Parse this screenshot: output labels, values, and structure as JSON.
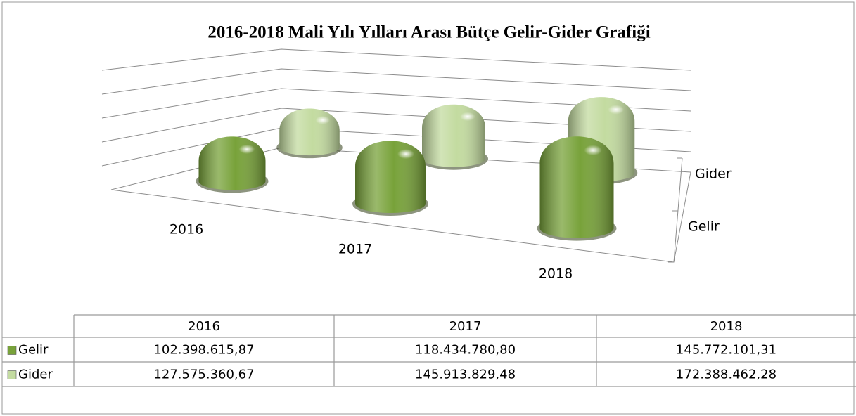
{
  "chart_data": {
    "type": "bar3d",
    "title": "2016-2018 Mali Yılı Yılları Arası Bütçe Gelir-Gider Grafiği",
    "categories": [
      "2016",
      "2017",
      "2018"
    ],
    "series": [
      {
        "name": "Gelir",
        "color": "#78a23a",
        "values": [
          102398615.87,
          118434780.8,
          145772101.31
        ],
        "value_labels": [
          "102.398.615,87",
          "118.434.780,80",
          "145.772.101,31"
        ]
      },
      {
        "name": "Gider",
        "color": "#c3dba0",
        "values": [
          127575360.67,
          145913829.48,
          172388462.28
        ],
        "value_labels": [
          "127.575.360,67",
          "145.913.829,48",
          "172.388.462,28"
        ]
      }
    ]
  }
}
